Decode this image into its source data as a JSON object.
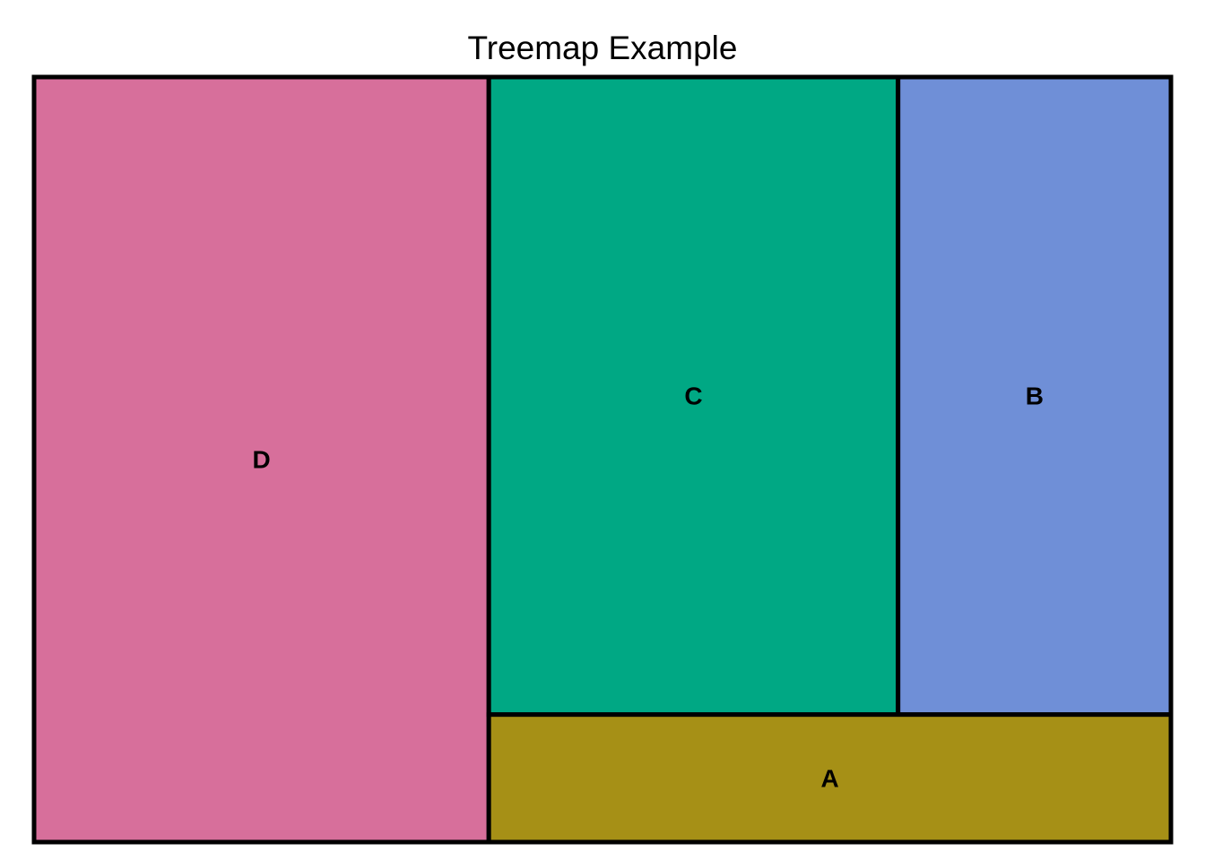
{
  "chart_data": {
    "type": "treemap",
    "title": "Treemap Example",
    "cells": [
      {
        "label": "D",
        "value": 40,
        "color": "#D76F9B"
      },
      {
        "label": "C",
        "value": 30,
        "color": "#00A884"
      },
      {
        "label": "B",
        "value": 20,
        "color": "#6F8FD7"
      },
      {
        "label": "A",
        "value": 10,
        "color": "#A69016"
      }
    ],
    "border_color": "#000000"
  }
}
